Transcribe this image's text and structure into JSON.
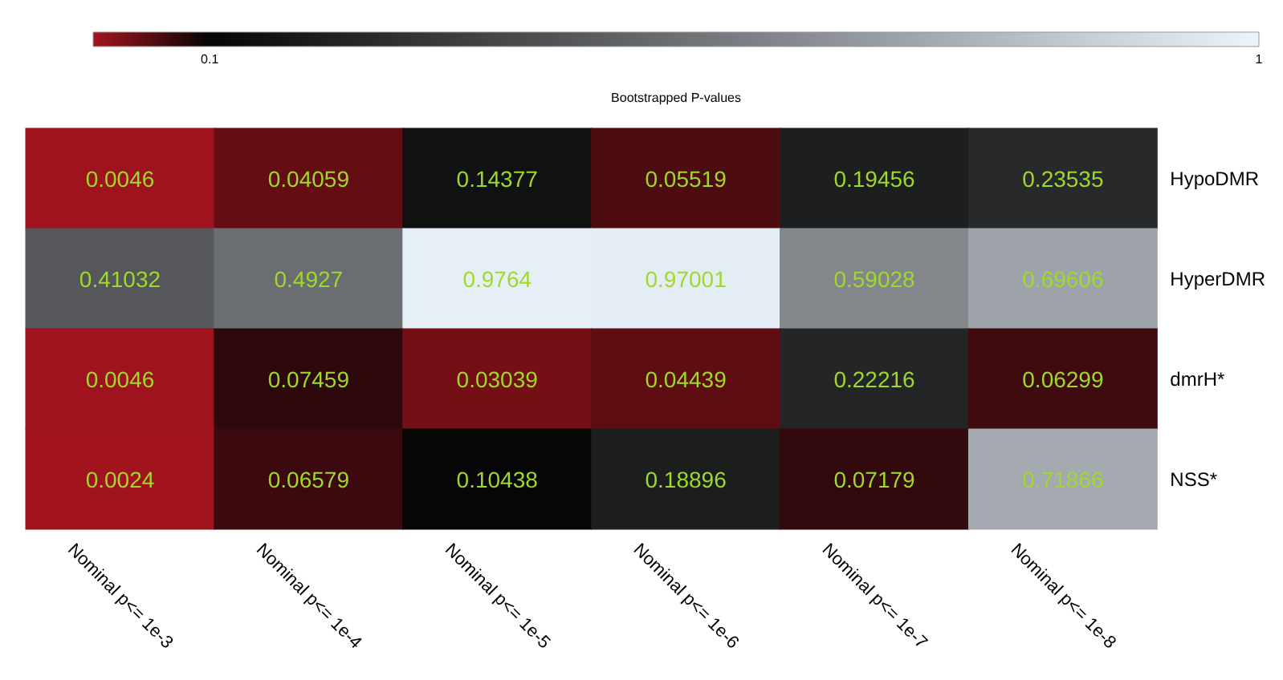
{
  "chart_data": {
    "type": "heatmap",
    "clabel": "Bootstrapped P-values",
    "categories": [
      "Nominal p<= 1e-3",
      "Nominal p<= 1e-4",
      "Nominal p<= 1e-5",
      "Nominal p<= 1e-6",
      "Nominal p<= 1e-7",
      "Nominal p<= 1e-8"
    ],
    "y_categories": [
      "HypoDMR",
      "HyperDMR",
      "dmrH*",
      "NSS*"
    ],
    "cells": [
      [
        0.0046,
        0.04059,
        0.14377,
        0.05519,
        0.19456,
        0.23535
      ],
      [
        0.41032,
        0.4927,
        0.9764,
        0.97001,
        0.59028,
        0.69606
      ],
      [
        0.0046,
        0.07459,
        0.03039,
        0.04439,
        0.22216,
        0.06299
      ],
      [
        0.0024,
        0.06579,
        0.10438,
        0.18896,
        0.07179,
        0.71866
      ]
    ],
    "clim": [
      0,
      1
    ],
    "cticks": [
      0.1,
      1
    ],
    "data_labels": true
  }
}
